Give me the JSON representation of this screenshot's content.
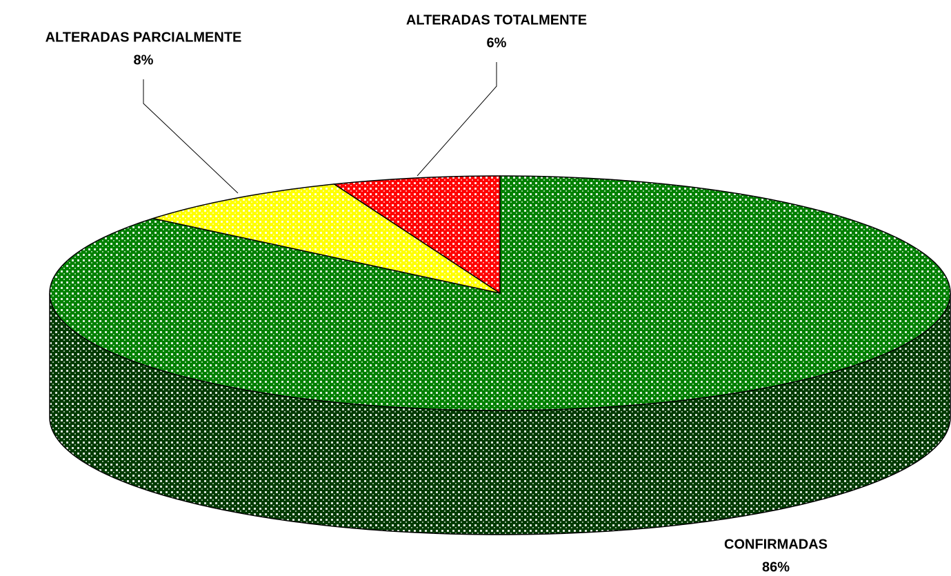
{
  "chart_data": {
    "type": "pie3d",
    "categories": [
      "CONFIRMADAS",
      "ALTERADAS PARCIALMENTE",
      "ALTERADAS TOTALMENTE"
    ],
    "values": [
      86,
      8,
      6
    ],
    "value_labels": [
      "86%",
      "8%",
      "6%"
    ],
    "colors": [
      "#008000",
      "#ffff00",
      "#ff0000"
    ]
  }
}
